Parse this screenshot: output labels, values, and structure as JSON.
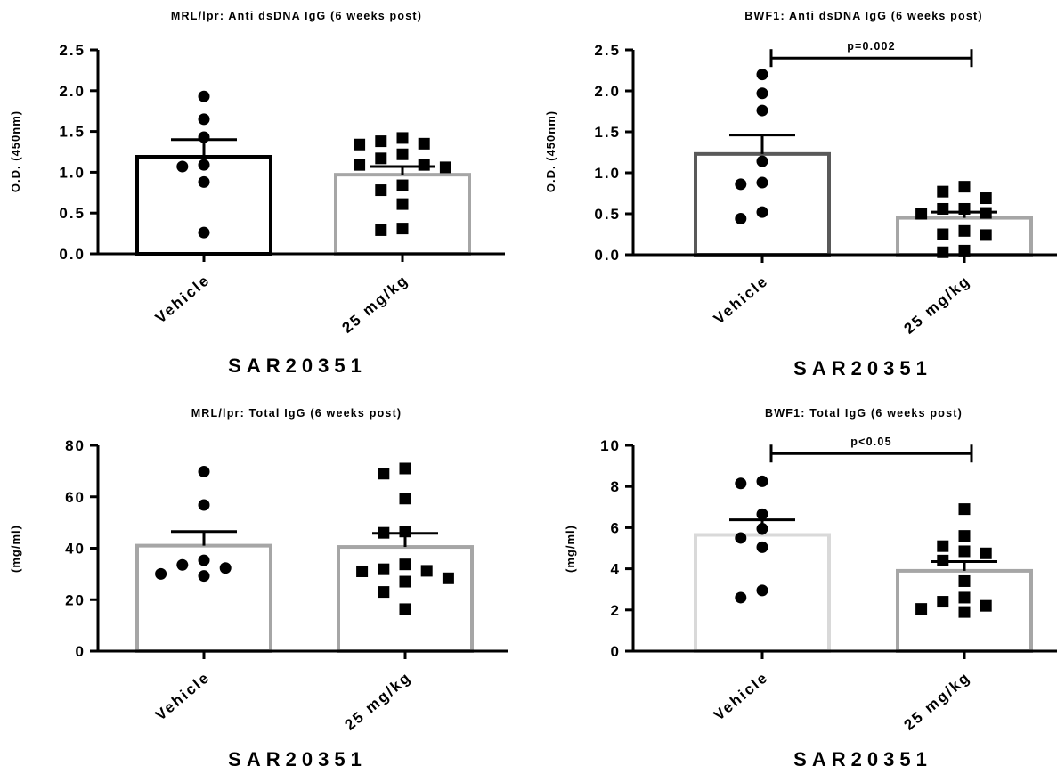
{
  "chart_data": [
    {
      "type": "bar",
      "title": "MRL/lpr: Anti dsDNA IgG (6 weeks post)",
      "ylabel": "O.D. (450nm)",
      "xlabel": "SAR20351",
      "categories": [
        "Vehicle",
        "25 mg/kg"
      ],
      "ylim": [
        0,
        2.5
      ],
      "yticks": [
        0.0,
        0.5,
        1.0,
        1.5,
        2.0,
        2.5
      ],
      "ytick_labels": [
        "0.0",
        "0.5",
        "1.0",
        "1.5",
        "2.0",
        "2.5"
      ],
      "bar_colors": [
        "#000000",
        "#a6a6a6"
      ],
      "series": [
        {
          "mean": 1.19,
          "sem_upper": 1.4,
          "marker": "circle",
          "points": [
            1.93,
            1.65,
            1.43,
            1.09,
            1.07,
            0.88,
            0.26
          ]
        },
        {
          "mean": 0.97,
          "sem_upper": 1.07,
          "marker": "square",
          "points": [
            1.42,
            1.38,
            1.35,
            1.34,
            1.22,
            1.17,
            1.09,
            1.09,
            1.06,
            0.84,
            0.78,
            0.61,
            0.31,
            0.29
          ]
        }
      ],
      "significance": null
    },
    {
      "type": "bar",
      "title": "BWF1: Anti dsDNA IgG (6 weeks post)",
      "ylabel": "O.D. (450nm)",
      "xlabel": "SAR20351",
      "categories": [
        "Vehicle",
        "25 mg/kg"
      ],
      "ylim": [
        0,
        2.5
      ],
      "yticks": [
        0.0,
        0.5,
        1.0,
        1.5,
        2.0,
        2.5
      ],
      "ytick_labels": [
        "0.0",
        "0.5",
        "1.0",
        "1.5",
        "2.0",
        "2.5"
      ],
      "bar_colors": [
        "#595959",
        "#a6a6a6"
      ],
      "series": [
        {
          "mean": 1.23,
          "sem_upper": 1.46,
          "marker": "circle",
          "points": [
            2.2,
            1.97,
            1.76,
            1.14,
            0.88,
            0.86,
            0.52,
            0.44
          ]
        },
        {
          "mean": 0.45,
          "sem_upper": 0.52,
          "marker": "square",
          "points": [
            0.83,
            0.77,
            0.69,
            0.56,
            0.56,
            0.51,
            0.5,
            0.29,
            0.25,
            0.24,
            0.05,
            0.03
          ]
        }
      ],
      "significance": {
        "label": "p=0.002",
        "y": 2.4
      }
    },
    {
      "type": "bar",
      "title": "MRL/lpr: Total IgG (6 weeks post)",
      "ylabel": "(mg/ml)",
      "xlabel": "SAR20351",
      "categories": [
        "Vehicle",
        "25 mg/kg"
      ],
      "ylim": [
        0,
        80
      ],
      "yticks": [
        0,
        20,
        40,
        60,
        80
      ],
      "ytick_labels": [
        "0",
        "20",
        "40",
        "60",
        "80"
      ],
      "bar_colors": [
        "#a6a6a6",
        "#a6a6a6"
      ],
      "series": [
        {
          "mean": 41,
          "sem_upper": 46.5,
          "marker": "circle",
          "points": [
            69.8,
            56.8,
            35.3,
            33.5,
            32.3,
            30.0,
            29.2
          ]
        },
        {
          "mean": 40.5,
          "sem_upper": 45.8,
          "marker": "square",
          "points": [
            71.0,
            69.0,
            59.3,
            46.5,
            46.0,
            33.7,
            31.8,
            31.2,
            31.0,
            28.3,
            27.0,
            23.0,
            16.3
          ]
        }
      ],
      "significance": null
    },
    {
      "type": "bar",
      "title": "BWF1: Total IgG (6 weeks post)",
      "ylabel": "(mg/ml)",
      "xlabel": "SAR20351",
      "categories": [
        "Vehicle",
        "25 mg/kg"
      ],
      "ylim": [
        0,
        10
      ],
      "yticks": [
        0,
        2,
        4,
        6,
        8,
        10
      ],
      "ytick_labels": [
        "0",
        "2",
        "4",
        "6",
        "8",
        "10"
      ],
      "bar_colors": [
        "#d9d9d9",
        "#a6a6a6"
      ],
      "series": [
        {
          "mean": 5.65,
          "sem_upper": 6.38,
          "marker": "circle",
          "points": [
            8.25,
            8.15,
            6.65,
            5.95,
            5.5,
            5.05,
            2.95,
            2.6
          ]
        },
        {
          "mean": 3.9,
          "sem_upper": 4.35,
          "marker": "square",
          "points": [
            6.9,
            5.6,
            5.1,
            4.85,
            4.75,
            4.4,
            3.4,
            2.6,
            2.4,
            2.2,
            2.05,
            1.9
          ]
        }
      ],
      "significance": {
        "label": "p<0.05",
        "y": 9.6
      }
    }
  ]
}
